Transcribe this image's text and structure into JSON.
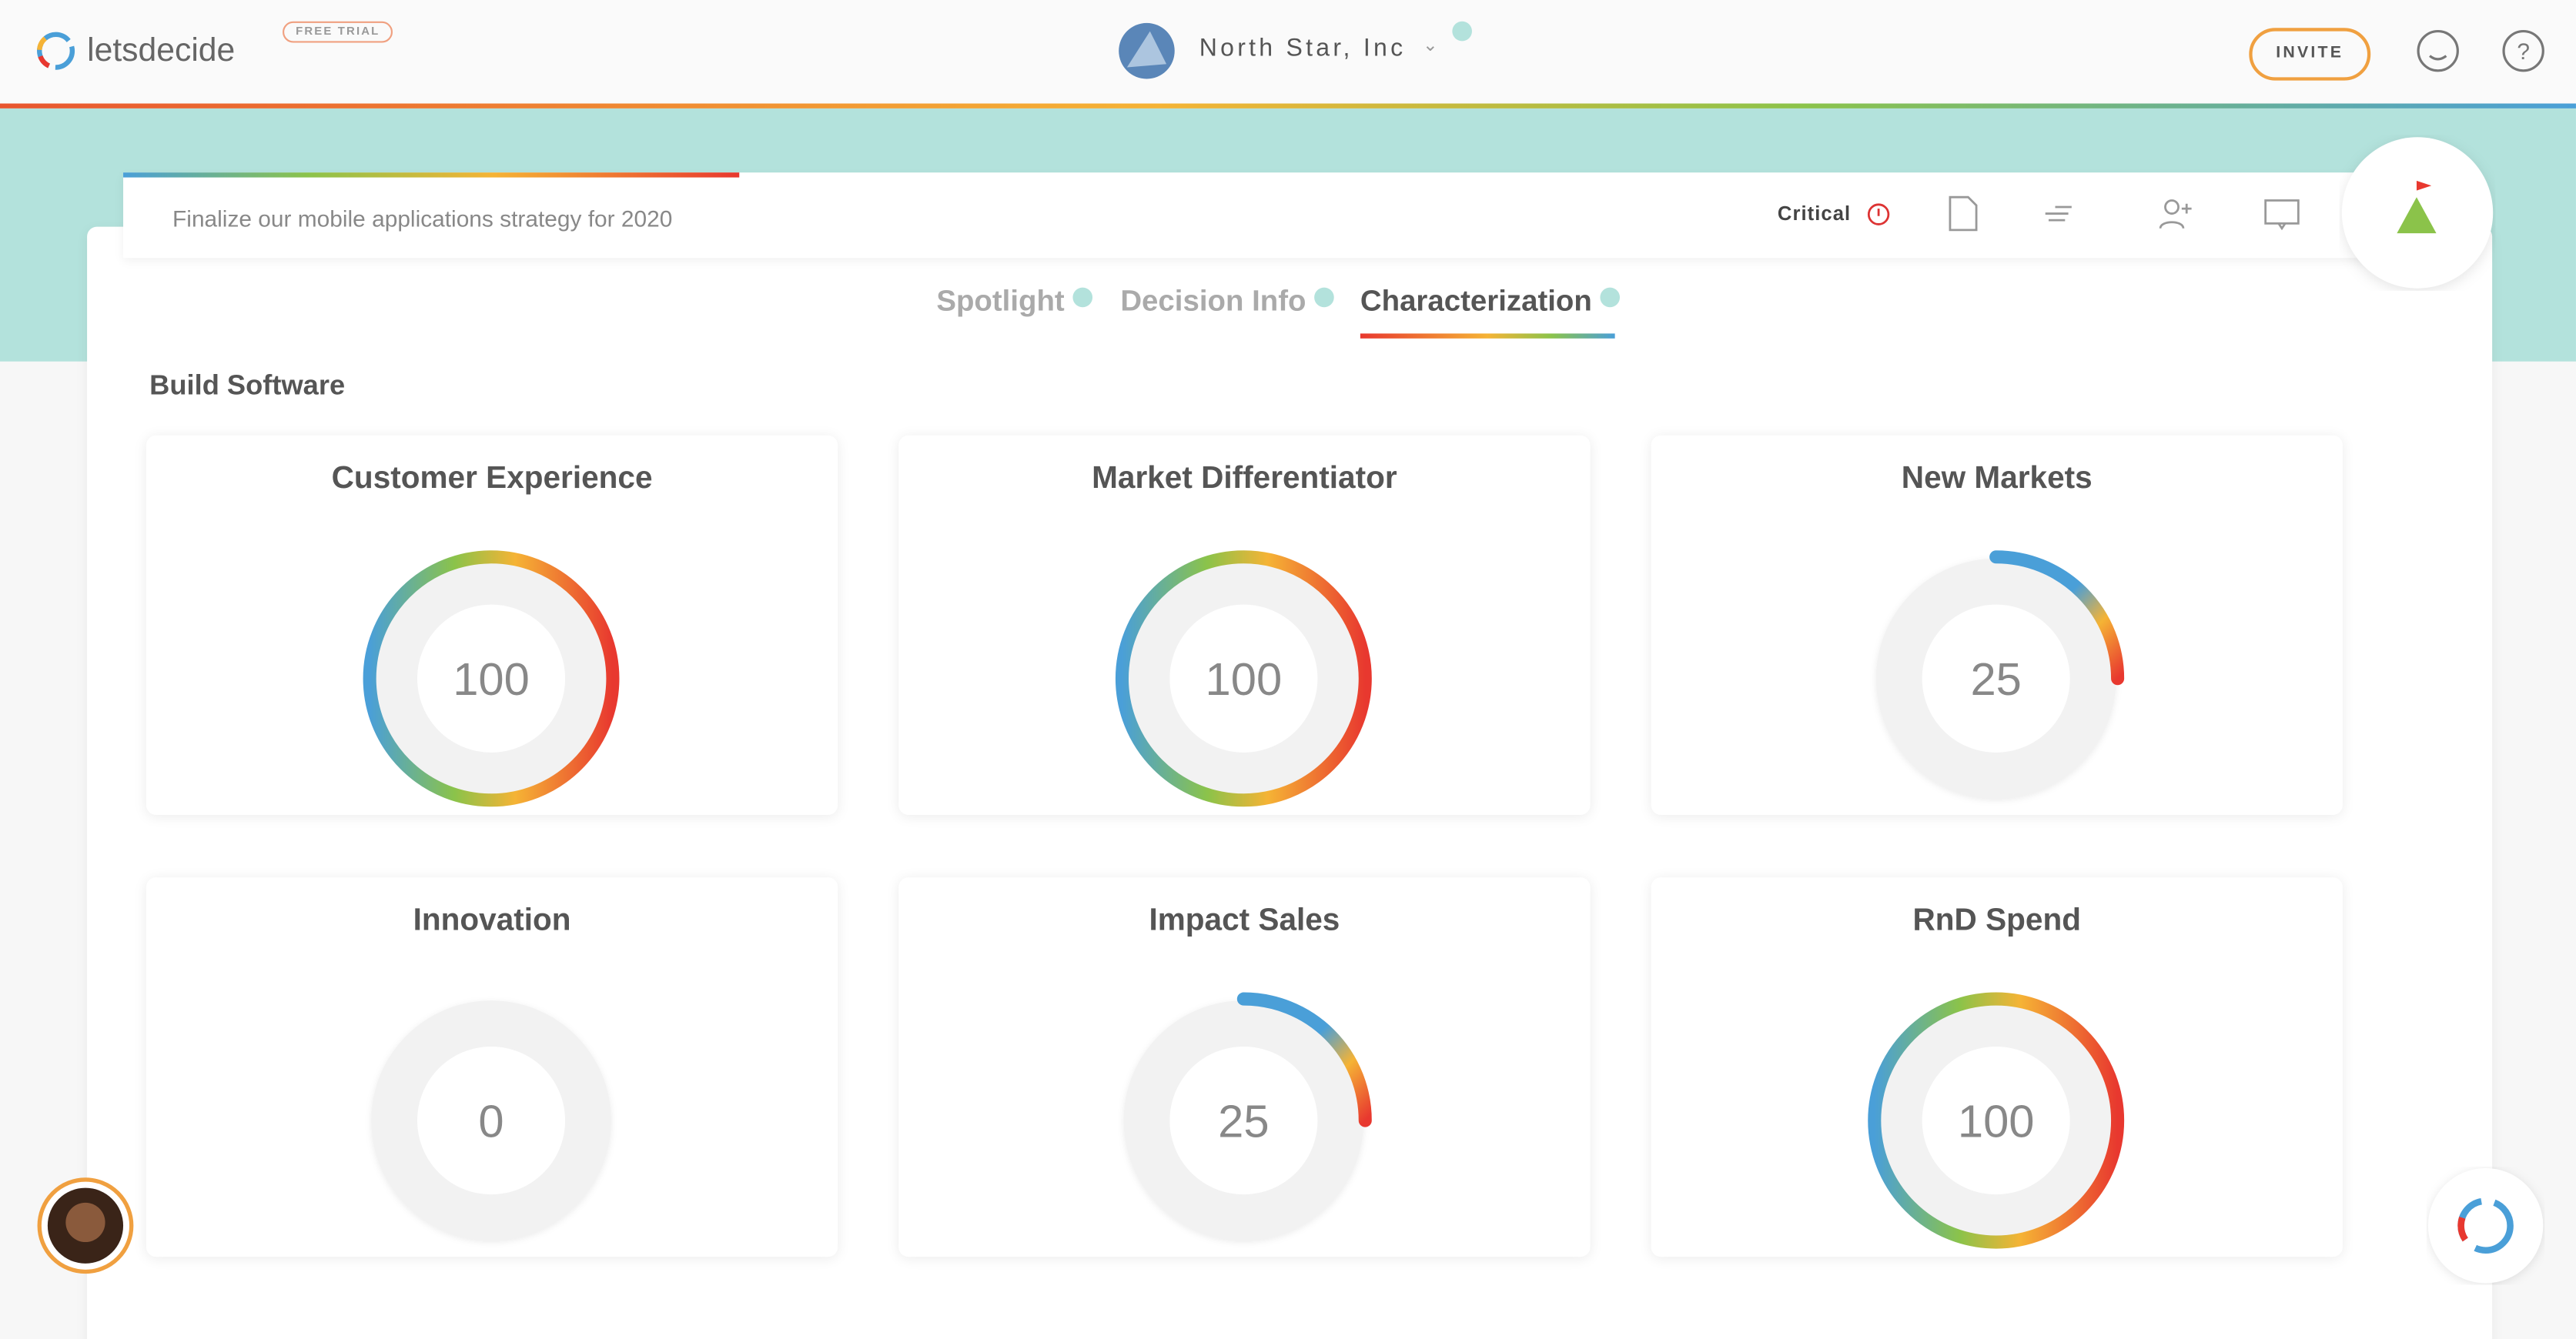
{
  "header": {
    "brand": "letsdecide",
    "badge": "FREE TRIAL",
    "company": "North Star, Inc",
    "invite": "INVITE"
  },
  "decision": {
    "title": "Finalize our mobile applications strategy for 2020",
    "priority": "Critical"
  },
  "tabs": [
    "Spotlight",
    "Decision Info",
    "Characterization"
  ],
  "section": {
    "title": "Build Software"
  },
  "gauges": [
    {
      "label": "Customer Experience",
      "value": 100
    },
    {
      "label": "Market Differentiator",
      "value": 100
    },
    {
      "label": "New Markets",
      "value": 25
    },
    {
      "label": "Innovation",
      "value": 0
    },
    {
      "label": "Impact Sales",
      "value": 25
    },
    {
      "label": "RnD Spend",
      "value": 100
    }
  ]
}
